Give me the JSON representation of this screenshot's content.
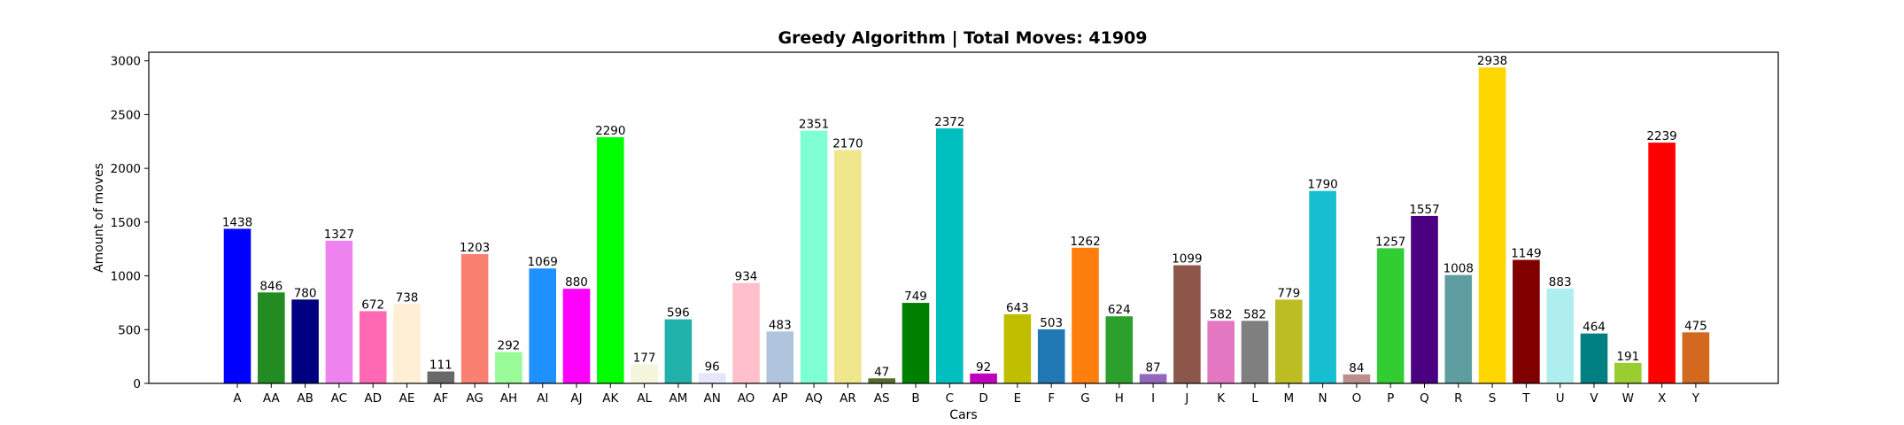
{
  "chart_data": {
    "type": "bar",
    "title": "Greedy Algorithm | Total Moves: 41909",
    "xlabel": "Cars",
    "ylabel": "Amount of moves",
    "ylim": [
      0,
      3080
    ],
    "yticks": [
      0,
      500,
      1000,
      1500,
      2000,
      2500,
      3000
    ],
    "grid": false,
    "categories": [
      "A",
      "AA",
      "AB",
      "AC",
      "AD",
      "AE",
      "AF",
      "AG",
      "AH",
      "AI",
      "AJ",
      "AK",
      "AL",
      "AM",
      "AN",
      "AO",
      "AP",
      "AQ",
      "AR",
      "AS",
      "B",
      "C",
      "D",
      "E",
      "F",
      "G",
      "H",
      "I",
      "J",
      "K",
      "L",
      "M",
      "N",
      "O",
      "P",
      "Q",
      "R",
      "S",
      "T",
      "U",
      "V",
      "W",
      "X",
      "Y"
    ],
    "values": [
      1438,
      846,
      780,
      1327,
      672,
      738,
      111,
      1203,
      292,
      1069,
      880,
      2290,
      177,
      596,
      96,
      934,
      483,
      2351,
      2170,
      47,
      749,
      2372,
      92,
      643,
      503,
      1262,
      624,
      87,
      1099,
      582,
      582,
      779,
      1790,
      84,
      1257,
      1557,
      1008,
      2938,
      1149,
      883,
      464,
      191,
      2239,
      475
    ],
    "colors": [
      "#0000ff",
      "#228b22",
      "#000080",
      "#ee82ee",
      "#ff69b4",
      "#ffefd5",
      "#696969",
      "#fa8072",
      "#98fb98",
      "#1e90ff",
      "#ff00ff",
      "#00ff00",
      "#f5f5dc",
      "#20b2aa",
      "#e6e6fa",
      "#ffc0cb",
      "#b0c4de",
      "#7fffd4",
      "#f0e68c",
      "#556b2f",
      "#008000",
      "#00bfbf",
      "#bf00bf",
      "#bfbf00",
      "#1f77b4",
      "#ff7f0e",
      "#2ca02c",
      "#9467bd",
      "#8c564b",
      "#e377c2",
      "#7f7f7f",
      "#bcbd22",
      "#17becf",
      "#bc8f8f",
      "#32cd32",
      "#4b0082",
      "#5f9ea0",
      "#ffd700",
      "#800000",
      "#afeeee",
      "#008080",
      "#9acd32",
      "#ff0000",
      "#d2691e"
    ]
  }
}
